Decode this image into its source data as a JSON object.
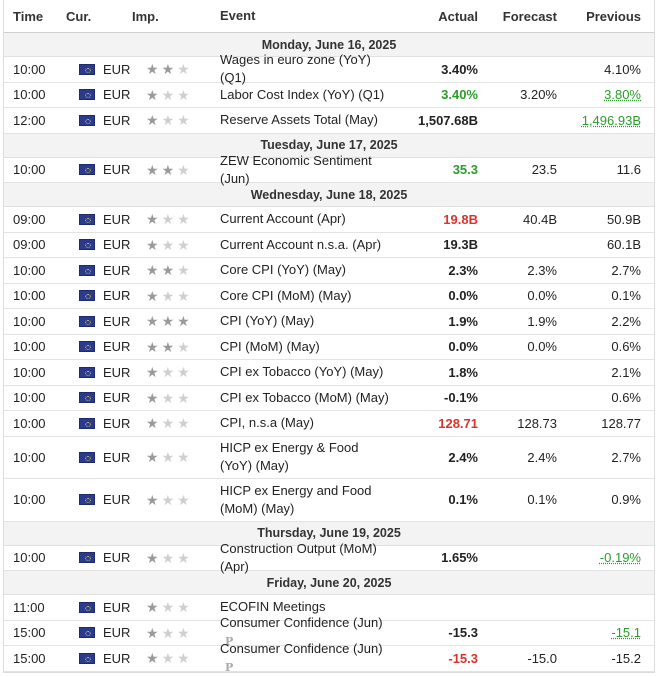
{
  "header": {
    "time": "Time",
    "cur": "Cur.",
    "imp": "Imp.",
    "event": "Event",
    "actual": "Actual",
    "forecast": "Forecast",
    "previous": "Previous"
  },
  "icons": {
    "flag": "eu-flag-icon",
    "star": "star-icon",
    "preliminary": "preliminary-p-icon"
  },
  "colors": {
    "positive": "#2a9d2a",
    "negative": "#d6342c",
    "day_bg": "#f3f3f4"
  },
  "days": [
    {
      "label": "Monday, June 16, 2025",
      "events": [
        {
          "time": "10:00",
          "cur": "EUR",
          "imp": 2,
          "event": "Wages in euro zone (YoY) (Q1)",
          "actual": "3.40%",
          "actual_color": "",
          "forecast": "",
          "previous": "4.10%",
          "prev_color": ""
        },
        {
          "time": "10:00",
          "cur": "EUR",
          "imp": 1,
          "event": "Labor Cost Index (YoY) (Q1)",
          "actual": "3.40%",
          "actual_color": "pos",
          "forecast": "3.20%",
          "previous": "3.80%",
          "prev_color": "pos"
        },
        {
          "time": "12:00",
          "cur": "EUR",
          "imp": 1,
          "event": "Reserve Assets Total (May)",
          "actual": "1,507.68B",
          "actual_color": "",
          "forecast": "",
          "previous": "1,496.93B",
          "prev_color": "pos"
        }
      ]
    },
    {
      "label": "Tuesday, June 17, 2025",
      "events": [
        {
          "time": "10:00",
          "cur": "EUR",
          "imp": 2,
          "event": "ZEW Economic Sentiment (Jun)",
          "actual": "35.3",
          "actual_color": "pos",
          "forecast": "23.5",
          "previous": "11.6",
          "prev_color": ""
        }
      ]
    },
    {
      "label": "Wednesday, June 18, 2025",
      "events": [
        {
          "time": "09:00",
          "cur": "EUR",
          "imp": 1,
          "event": "Current Account (Apr)",
          "actual": "19.8B",
          "actual_color": "neg",
          "forecast": "40.4B",
          "previous": "50.9B",
          "prev_color": ""
        },
        {
          "time": "09:00",
          "cur": "EUR",
          "imp": 1,
          "event": "Current Account n.s.a. (Apr)",
          "actual": "19.3B",
          "actual_color": "",
          "forecast": "",
          "previous": "60.1B",
          "prev_color": ""
        },
        {
          "time": "10:00",
          "cur": "EUR",
          "imp": 2,
          "event": "Core CPI (YoY) (May)",
          "actual": "2.3%",
          "actual_color": "",
          "forecast": "2.3%",
          "previous": "2.7%",
          "prev_color": ""
        },
        {
          "time": "10:00",
          "cur": "EUR",
          "imp": 1,
          "event": "Core CPI (MoM) (May)",
          "actual": "0.0%",
          "actual_color": "",
          "forecast": "0.0%",
          "previous": "0.1%",
          "prev_color": ""
        },
        {
          "time": "10:00",
          "cur": "EUR",
          "imp": 3,
          "event": "CPI (YoY) (May)",
          "actual": "1.9%",
          "actual_color": "",
          "forecast": "1.9%",
          "previous": "2.2%",
          "prev_color": ""
        },
        {
          "time": "10:00",
          "cur": "EUR",
          "imp": 2,
          "event": "CPI (MoM) (May)",
          "actual": "0.0%",
          "actual_color": "",
          "forecast": "0.0%",
          "previous": "0.6%",
          "prev_color": ""
        },
        {
          "time": "10:00",
          "cur": "EUR",
          "imp": 1,
          "event": "CPI ex Tobacco (YoY) (May)",
          "actual": "1.8%",
          "actual_color": "",
          "forecast": "",
          "previous": "2.1%",
          "prev_color": ""
        },
        {
          "time": "10:00",
          "cur": "EUR",
          "imp": 1,
          "event": "CPI ex Tobacco (MoM) (May)",
          "actual": "-0.1%",
          "actual_color": "",
          "forecast": "",
          "previous": "0.6%",
          "prev_color": ""
        },
        {
          "time": "10:00",
          "cur": "EUR",
          "imp": 1,
          "event": "CPI, n.s.a (May)",
          "actual": "128.71",
          "actual_color": "neg",
          "forecast": "128.73",
          "previous": "128.77",
          "prev_color": ""
        },
        {
          "time": "10:00",
          "cur": "EUR",
          "imp": 1,
          "event": "HICP ex Energy & Food (YoY) (May)",
          "actual": "2.4%",
          "actual_color": "",
          "forecast": "2.4%",
          "previous": "2.7%",
          "prev_color": "",
          "tall": true
        },
        {
          "time": "10:00",
          "cur": "EUR",
          "imp": 1,
          "event": "HICP ex Energy and Food (MoM) (May)",
          "actual": "0.1%",
          "actual_color": "",
          "forecast": "0.1%",
          "previous": "0.9%",
          "prev_color": "",
          "tall": true
        }
      ]
    },
    {
      "label": "Thursday, June 19, 2025",
      "events": [
        {
          "time": "10:00",
          "cur": "EUR",
          "imp": 1,
          "event": "Construction Output (MoM) (Apr)",
          "actual": "1.65%",
          "actual_color": "",
          "forecast": "",
          "previous": "-0.19%",
          "prev_color": "pos"
        }
      ]
    },
    {
      "label": "Friday, June 20, 2025",
      "events": [
        {
          "time": "11:00",
          "cur": "EUR",
          "imp": 1,
          "event": "ECOFIN Meetings",
          "actual": "",
          "actual_color": "",
          "forecast": "",
          "previous": "",
          "prev_color": ""
        },
        {
          "time": "15:00",
          "cur": "EUR",
          "imp": 1,
          "event": "Consumer Confidence (Jun)",
          "prelim": true,
          "actual": "-15.3",
          "actual_color": "",
          "forecast": "",
          "previous": "-15.1",
          "prev_color": "pos"
        },
        {
          "time": "15:00",
          "cur": "EUR",
          "imp": 1,
          "event": "Consumer Confidence (Jun)",
          "prelim": true,
          "actual": "-15.3",
          "actual_color": "neg",
          "forecast": "-15.0",
          "previous": "-15.2",
          "prev_color": ""
        }
      ]
    }
  ]
}
